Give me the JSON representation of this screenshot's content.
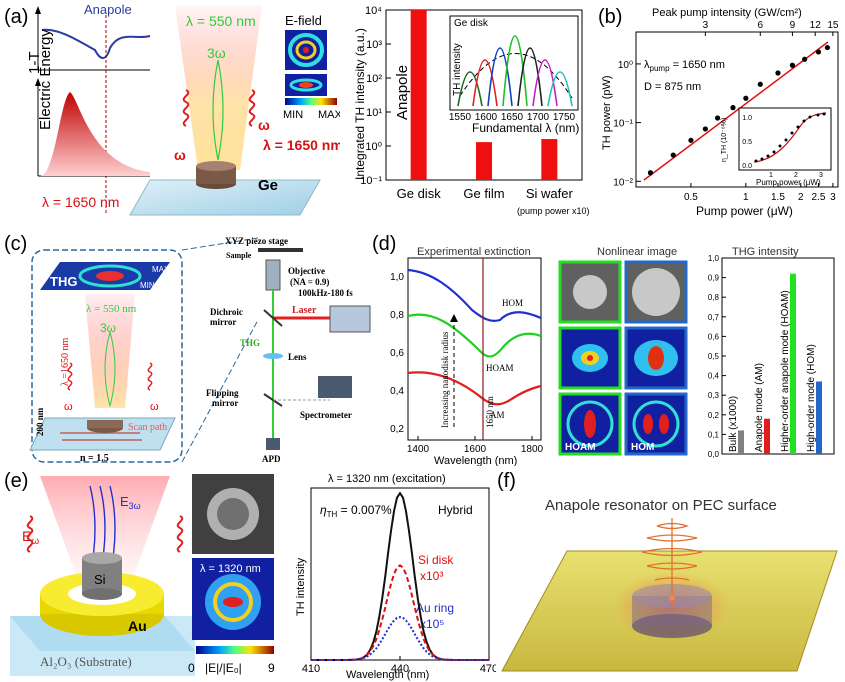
{
  "labels": {
    "a": "(a)",
    "b": "(b)",
    "c": "(c)",
    "d": "(d)",
    "e": "(e)",
    "f": "(f)"
  },
  "a": {
    "anapole": "Anapole",
    "one_minus_t": "1-T",
    "electric_energy": "Electric Energy",
    "lambda_pump": "λ = 1650 nm",
    "lambda_pump_right": "λ = 1650 nm",
    "lambda_th": "λ = 550 nm",
    "three_omega": "3ω",
    "omega": "ω",
    "omega_right": "ω",
    "ge": "Ge",
    "efield_title": "E-field",
    "min": "MIN",
    "max": "MAX"
  },
  "a_chart": {
    "type": "bar",
    "ylabel": "Integrated TH intensity (a.u.)",
    "categories": [
      "Ge disk",
      "Ge film",
      "Si wafer"
    ],
    "values": [
      10000,
      1.3,
      1.6
    ],
    "ylim": [
      0.1,
      10000
    ],
    "yticks": [
      "10⁻¹",
      "10⁰",
      "10¹",
      "10²",
      "10³",
      "10⁴"
    ],
    "bar_label": "Anapole",
    "note": "(pump power x10)",
    "inset": {
      "label": "Ge disk",
      "ylabel": "TH intensity",
      "xlabel": "Fundamental λ (nm)",
      "xticks": [
        "1550",
        "1600",
        "1650",
        "1700",
        "1750"
      ]
    }
  },
  "b_chart": {
    "type": "scatter",
    "top_title": "Peak pump intensity (GW/cm²)",
    "top_ticks": [
      "3",
      "6",
      "9",
      "12",
      "15"
    ],
    "xlabel": "Pump power (μW)",
    "xticks": [
      "0.5",
      "1",
      "1.5",
      "2",
      "2.5",
      "3"
    ],
    "ylabel": "TH power (pW)",
    "yticks": [
      "10⁻²",
      "10⁻¹",
      "10⁰"
    ],
    "ann1": "λ",
    "ann1_sub": "pump",
    "ann1_rest": " = 1650 nm",
    "ann2": "D = 875 nm",
    "x": [
      0.3,
      0.4,
      0.5,
      0.6,
      0.7,
      0.85,
      1.0,
      1.2,
      1.5,
      1.8,
      2.1,
      2.5,
      2.8
    ],
    "y": [
      0.014,
      0.028,
      0.05,
      0.078,
      0.12,
      0.18,
      0.26,
      0.45,
      0.7,
      0.95,
      1.2,
      1.6,
      1.9
    ],
    "inset": {
      "ylabel": "η_TH (10⁻⁶%)",
      "xlabel": "Pump power (μW)",
      "yticks": [
        "0.0",
        "0.5",
        "1.0"
      ],
      "xticks": [
        "1",
        "2",
        "3"
      ]
    }
  },
  "c": {
    "thg": "THG",
    "min": "MIN",
    "max": "MAX",
    "lambda_th": "λ = 550 nm",
    "three_omega": "3ω",
    "lambda_pump": "λ =1650 nm",
    "omega_left": "ω",
    "omega_right": "ω",
    "height": "200 nm",
    "n": "n = 1.5",
    "scan": "Scan path",
    "xyz": "XYZ piezo stage",
    "sample": "Sample",
    "objective": "Objective",
    "na": "(NA = 0.9)",
    "dichroic": "Dichroic",
    "mirror": "mirror",
    "laser": "Laser",
    "laser_spec": "100kHz-180 fs",
    "thg2": "THG",
    "lens": "Lens",
    "flipping": "Flipping",
    "mirror2": "mirror",
    "spectrometer": "Spectrometer",
    "apd": "APD"
  },
  "d": {
    "ext_title": "Experimental extinction",
    "nl_title": "Nonlinear image",
    "thg_title": "THG intensity",
    "hom": "HOM",
    "hoam": "HOAM",
    "am": "AM",
    "wl": "1650 nm",
    "increasing": "Increasing nanodisk radius",
    "xlabel": "Wavelength (nm)",
    "xticks": [
      "1400",
      "1600",
      "1800"
    ],
    "yticks": [
      "0,2",
      "0,4",
      "0,6",
      "0,8",
      "1,0"
    ],
    "hoam_tag": "HOAM",
    "hom_tag": "HOM",
    "bar_chart": {
      "type": "bar",
      "categories": [
        "Bulk (x1000)",
        "Anapole mode (AM)",
        "Higher-order anapole mode (HOAM)",
        "High-order mode (HOM)"
      ],
      "values": [
        0.12,
        0.18,
        0.92,
        0.37
      ],
      "colors": [
        "#808080",
        "#e11e1e",
        "#22e022",
        "#2367c8"
      ],
      "ylim": [
        0,
        1.0
      ],
      "yticks": [
        "0,0",
        "0,1",
        "0,2",
        "0,3",
        "0,4",
        "0,5",
        "0,6",
        "0,7",
        "0,8",
        "0,9",
        "1,0"
      ]
    }
  },
  "e": {
    "e_omega": "E",
    "e_omega_sub": "ω",
    "e_3omega": "E",
    "e_3omega_sub": "3ω",
    "si": "Si",
    "au": "Au",
    "substrate": "Al₂O₃ (Substrate)",
    "lambda_map": "λ = 1320 nm",
    "cbar_min": "0",
    "cbar_label": "|E|/|E₀|",
    "cbar_max": "9"
  },
  "e_chart": {
    "type": "line",
    "title": "λ = 1320 nm (excitation)",
    "eta": "η",
    "eta_sub": "TH",
    "eta_val": " = 0.007%",
    "hybrid": "Hybrid",
    "si_disk": "Si disk",
    "si_scale": "x10³",
    "au_ring": "Au ring",
    "au_scale": "x10⁵",
    "xlabel": "Wavelength (nm)",
    "ylabel": "TH intensity",
    "xticks": [
      "410",
      "440",
      "470"
    ],
    "xlim": [
      410,
      470
    ]
  },
  "f": {
    "title": "Anapole resonator on PEC surface"
  }
}
